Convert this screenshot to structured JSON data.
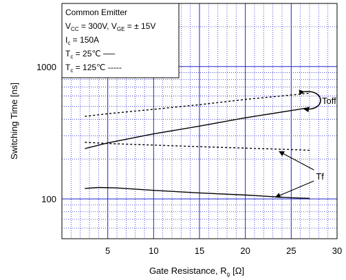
{
  "chart_data": {
    "type": "line",
    "x_scale": "linear",
    "y_scale": "log",
    "xlim": [
      0,
      30
    ],
    "ylim": [
      50,
      3000
    ],
    "xlabel": "Gate Resistance, R",
    "xlabel_sub": "g",
    "xlabel_unit": "[Ω]",
    "ylabel": "Switching Time [ns]",
    "xticks": [
      {
        "value": 5,
        "label": "5"
      },
      {
        "value": 10,
        "label": "10"
      },
      {
        "value": 15,
        "label": "15"
      },
      {
        "value": 20,
        "label": "20"
      },
      {
        "value": 25,
        "label": "25"
      },
      {
        "value": 30,
        "label": "30"
      }
    ],
    "yticks": [
      {
        "value": 100,
        "label": "100"
      },
      {
        "value": 1000,
        "label": "1000"
      }
    ],
    "grid": "on",
    "grid_color": "#2222cc",
    "legend": {
      "placement": "top-left",
      "lines": [
        {
          "parts": [
            {
              "t": "Common Emitter"
            }
          ]
        },
        {
          "parts": [
            {
              "t": "V"
            },
            {
              "t": "CC",
              "sub": true
            },
            {
              "t": " = 300V, V"
            },
            {
              "t": "GE",
              "sub": true
            },
            {
              "t": " = ±  15V"
            }
          ]
        },
        {
          "parts": [
            {
              "t": "I"
            },
            {
              "t": "c",
              "sub": true
            },
            {
              "t": " = 150A"
            }
          ]
        },
        {
          "parts": [
            {
              "t": "T"
            },
            {
              "t": "c",
              "sub": true
            },
            {
              "t": " =   25℃ ──"
            }
          ]
        },
        {
          "parts": [
            {
              "t": "T"
            },
            {
              "t": "c",
              "sub": true
            },
            {
              "t": " = 125℃ -----"
            }
          ]
        }
      ]
    },
    "series": [
      {
        "group": "Toff",
        "tc": "25℃",
        "style": "solid",
        "points": [
          [
            2.5,
            240
          ],
          [
            5,
            265
          ],
          [
            10,
            310
          ],
          [
            15,
            355
          ],
          [
            20,
            410
          ],
          [
            25,
            465
          ],
          [
            27,
            490
          ]
        ]
      },
      {
        "group": "Toff",
        "tc": "125℃",
        "style": "dashed",
        "points": [
          [
            2.5,
            420
          ],
          [
            5,
            440
          ],
          [
            10,
            475
          ],
          [
            15,
            515
          ],
          [
            20,
            565
          ],
          [
            25,
            610
          ],
          [
            27,
            630
          ]
        ]
      },
      {
        "group": "Tf",
        "tc": "25℃",
        "style": "solid",
        "points": [
          [
            2.5,
            120
          ],
          [
            4,
            122
          ],
          [
            6,
            121
          ],
          [
            10,
            116
          ],
          [
            15,
            111
          ],
          [
            20,
            107
          ],
          [
            25,
            102
          ],
          [
            27,
            101
          ]
        ]
      },
      {
        "group": "Tf",
        "tc": "125℃",
        "style": "dashed",
        "points": [
          [
            2.5,
            268
          ],
          [
            5,
            262
          ],
          [
            10,
            255
          ],
          [
            15,
            248
          ],
          [
            20,
            242
          ],
          [
            25,
            236
          ],
          [
            27,
            233
          ]
        ]
      }
    ],
    "annotations": [
      {
        "text": "Toff"
      },
      {
        "text": "Tf"
      }
    ]
  }
}
